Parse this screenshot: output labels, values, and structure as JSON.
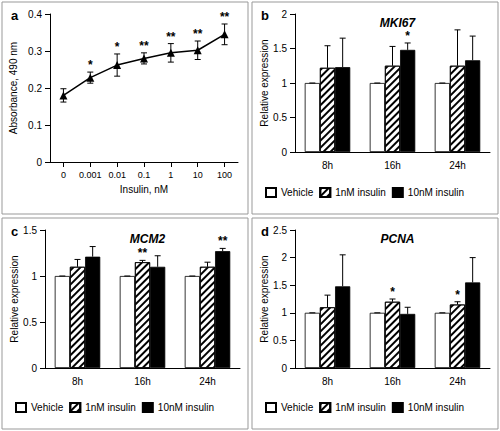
{
  "chart_data": [
    {
      "type": "line",
      "panel_label": "a",
      "x_label": "Insulin, nM",
      "y_label": "Absorbance, 490 nm",
      "categories": [
        "0",
        "0.001",
        "0.01",
        "0.1",
        "1",
        "10",
        "100"
      ],
      "values": [
        0.18,
        0.228,
        0.262,
        0.28,
        0.295,
        0.302,
        0.345
      ],
      "errors": [
        0.018,
        0.015,
        0.03,
        0.015,
        0.025,
        0.025,
        0.028
      ],
      "significance": [
        null,
        "*",
        "*",
        "**",
        "**",
        "**",
        "**"
      ],
      "color": "#000000",
      "marker": "triangle",
      "ylim": [
        0,
        0.4
      ],
      "yticks": [
        0,
        0.1,
        0.2,
        0.3,
        0.4
      ],
      "grid": false
    },
    {
      "type": "bar",
      "panel_label": "b",
      "title": "MKI67",
      "y_label": "Relative expression",
      "categories": [
        "8h",
        "16h",
        "24h"
      ],
      "series": [
        {
          "name": "Vehicle",
          "color": "#ffffff",
          "values": [
            1,
            1,
            1
          ],
          "errors": [
            0,
            0,
            0
          ],
          "significance": [
            null,
            null,
            null
          ]
        },
        {
          "name": "1nM insulin",
          "color": "#ffffff",
          "marker": "hatched",
          "values": [
            1.22,
            1.25,
            1.25
          ],
          "errors": [
            0.32,
            0.28,
            0.52
          ],
          "significance": [
            null,
            null,
            null
          ]
        },
        {
          "name": "10nM insulin",
          "color": "#000000",
          "values": [
            1.23,
            1.48,
            1.33
          ],
          "errors": [
            0.42,
            0.1,
            0.35
          ],
          "significance": [
            null,
            "*",
            null
          ]
        }
      ],
      "ylim": [
        0,
        2
      ],
      "yticks": [
        0,
        0.5,
        1,
        1.5,
        2
      ],
      "grid": false,
      "legend": "bottom"
    },
    {
      "type": "bar",
      "panel_label": "c",
      "title": "MCM2",
      "y_label": "Relative expression",
      "categories": [
        "8h",
        "16h",
        "24h"
      ],
      "series": [
        {
          "name": "Vehicle",
          "color": "#ffffff",
          "values": [
            1,
            1,
            1
          ],
          "errors": [
            0,
            0,
            0
          ],
          "significance": [
            null,
            null,
            null
          ]
        },
        {
          "name": "1nM insulin",
          "color": "#ffffff",
          "marker": "hatched",
          "values": [
            1.1,
            1.15,
            1.1
          ],
          "errors": [
            0.08,
            0.02,
            0.05
          ],
          "significance": [
            null,
            "**",
            null
          ]
        },
        {
          "name": "10nM insulin",
          "color": "#000000",
          "values": [
            1.21,
            1.1,
            1.27
          ],
          "errors": [
            0.11,
            0.12,
            0.03
          ],
          "significance": [
            null,
            null,
            "**"
          ]
        }
      ],
      "ylim": [
        0,
        1.5
      ],
      "yticks": [
        0,
        0.5,
        1,
        1.5
      ],
      "grid": false,
      "legend": "bottom"
    },
    {
      "type": "bar",
      "panel_label": "d",
      "title": "PCNA",
      "y_label": "Relative expression",
      "categories": [
        "8h",
        "16h",
        "24h"
      ],
      "series": [
        {
          "name": "Vehicle",
          "color": "#ffffff",
          "values": [
            1,
            1,
            1
          ],
          "errors": [
            0,
            0,
            0
          ],
          "significance": [
            null,
            null,
            null
          ]
        },
        {
          "name": "1nM insulin",
          "color": "#ffffff",
          "marker": "hatched",
          "values": [
            1.1,
            1.2,
            1.15
          ],
          "errors": [
            0.22,
            0.05,
            0.05
          ],
          "significance": [
            null,
            "*",
            "*"
          ]
        },
        {
          "name": "10nM insulin",
          "color": "#000000",
          "values": [
            1.48,
            0.98,
            1.55
          ],
          "errors": [
            0.57,
            0.12,
            0.45
          ],
          "significance": [
            null,
            null,
            null
          ]
        }
      ],
      "ylim": [
        0,
        2.5
      ],
      "yticks": [
        0,
        0.5,
        1,
        1.5,
        2,
        2.5
      ],
      "grid": false,
      "legend": "bottom"
    }
  ]
}
